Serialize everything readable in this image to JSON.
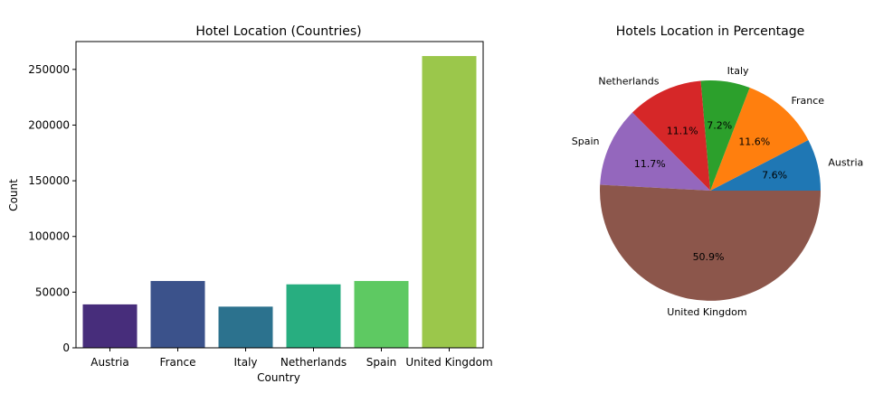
{
  "chart_data": [
    {
      "type": "bar",
      "title": "Hotel Location (Countries)",
      "xlabel": "Country",
      "ylabel": "Count",
      "categories": [
        "Austria",
        "France",
        "Italy",
        "Netherlands",
        "Spain",
        "United Kingdom"
      ],
      "values": [
        39000,
        60000,
        37000,
        57000,
        60000,
        262000
      ],
      "colors": [
        "#472d7b",
        "#3b528b",
        "#2c728e",
        "#28ae80",
        "#5ec962",
        "#9bc74b"
      ],
      "ylim": [
        0,
        275000
      ],
      "yticks": [
        0,
        50000,
        100000,
        150000,
        200000,
        250000
      ],
      "ytick_labels": [
        "0",
        "50000",
        "100000",
        "150000",
        "200000",
        "250000"
      ],
      "grid": false
    },
    {
      "type": "pie",
      "title": "Hotels Location in Percentage",
      "labels": [
        "Austria",
        "France",
        "Italy",
        "Netherlands",
        "Spain",
        "United Kingdom"
      ],
      "values": [
        7.6,
        11.6,
        7.2,
        11.1,
        11.7,
        50.9
      ],
      "pct_labels": [
        "7.6%",
        "11.6%",
        "7.2%",
        "11.1%",
        "11.7%",
        "50.9%"
      ],
      "colors": [
        "#1f77b4",
        "#ff7f0e",
        "#2ca02c",
        "#d62728",
        "#9467bd",
        "#8c564b"
      ],
      "start_angle": 0,
      "direction": "counterclockwise"
    }
  ]
}
